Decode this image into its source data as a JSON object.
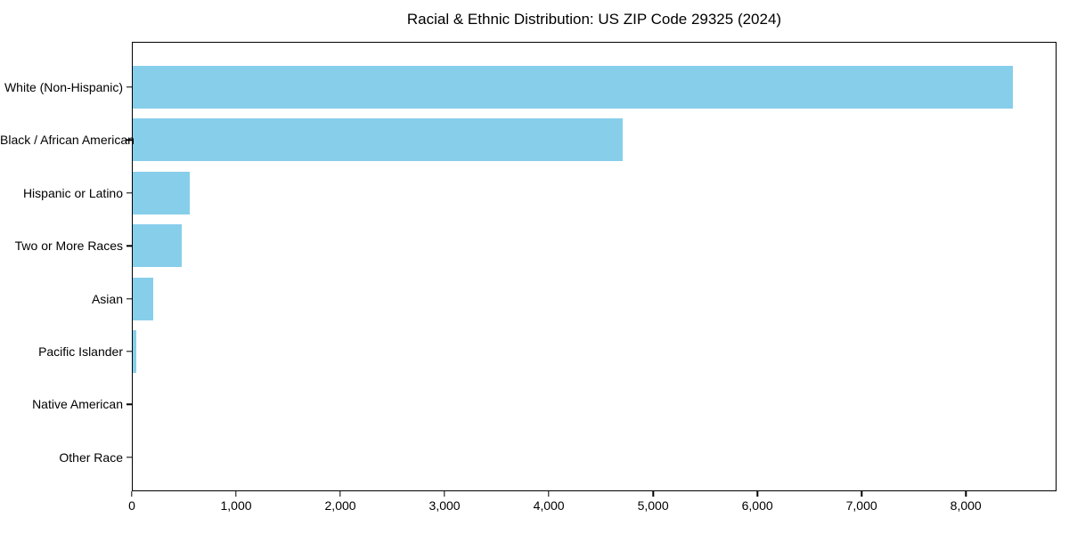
{
  "chart_data": {
    "type": "bar",
    "orientation": "horizontal",
    "title": "Racial & Ethnic Distribution: US ZIP Code 29325 (2024)",
    "categories": [
      "White (Non-Hispanic)",
      "Black / African American",
      "Hispanic or Latino",
      "Two or More Races",
      "Asian",
      "Pacific Islander",
      "Native American",
      "Other Race"
    ],
    "values": [
      8440,
      4700,
      550,
      470,
      200,
      35,
      0,
      0
    ],
    "bar_color": "#87CEEB",
    "xlabel": "",
    "ylabel": "",
    "xlim": [
      0,
      8870
    ],
    "x_ticks": [
      0,
      1000,
      2000,
      3000,
      4000,
      5000,
      6000,
      7000,
      8000
    ],
    "x_tick_labels": [
      "0",
      "1,000",
      "2,000",
      "3,000",
      "4,000",
      "5,000",
      "6,000",
      "7,000",
      "8,000"
    ],
    "grid": false,
    "legend": false,
    "frame_color": "#000000",
    "background": "#ffffff"
  }
}
